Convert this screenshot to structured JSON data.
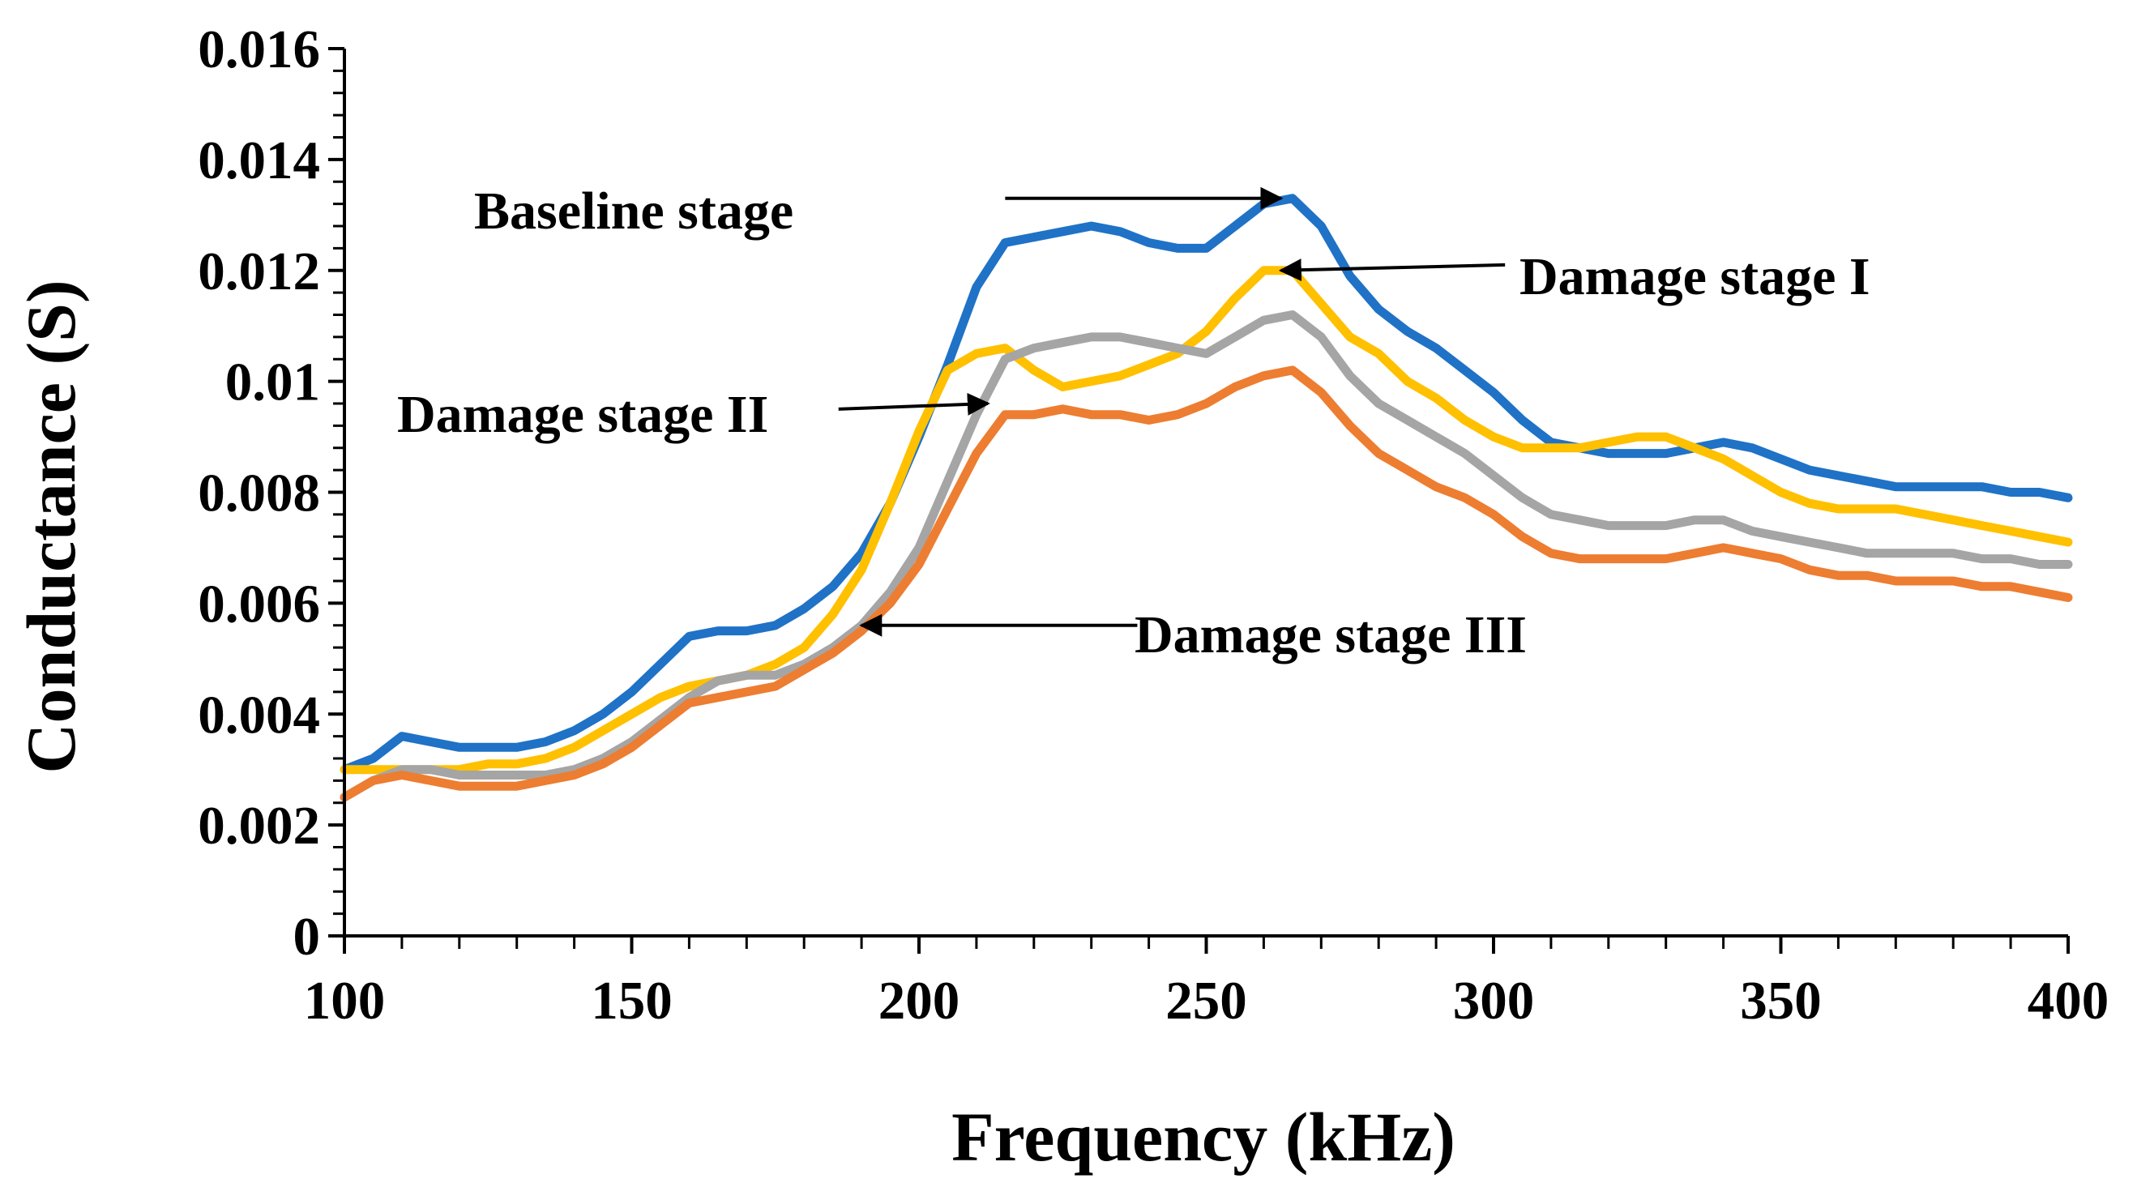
{
  "chart_data": {
    "type": "line",
    "title": "",
    "xlabel": "Frequency (kHz)",
    "ylabel": "Conductance (S)",
    "xlim": [
      100,
      400
    ],
    "ylim": [
      0,
      0.016
    ],
    "x_ticks": [
      "100",
      "150",
      "200",
      "250",
      "300",
      "350",
      "400"
    ],
    "y_ticks": [
      "0",
      "0.002",
      "0.004",
      "0.006",
      "0.008",
      "0.01",
      "0.012",
      "0.014",
      "0.016"
    ],
    "legend": "none",
    "grid": false,
    "x": [
      100,
      105,
      110,
      115,
      120,
      125,
      130,
      135,
      140,
      145,
      150,
      155,
      160,
      165,
      170,
      175,
      180,
      185,
      190,
      195,
      200,
      205,
      210,
      215,
      220,
      225,
      230,
      235,
      240,
      245,
      250,
      255,
      260,
      265,
      270,
      275,
      280,
      285,
      290,
      295,
      300,
      305,
      310,
      315,
      320,
      325,
      330,
      335,
      340,
      345,
      350,
      355,
      360,
      365,
      370,
      375,
      380,
      385,
      390,
      395,
      400
    ],
    "series": [
      {
        "name": "Baseline stage",
        "color": "#1f72c6",
        "values": [
          0.003,
          0.0032,
          0.0036,
          0.0035,
          0.0034,
          0.0034,
          0.0034,
          0.0035,
          0.0037,
          0.004,
          0.0044,
          0.0049,
          0.0054,
          0.0055,
          0.0055,
          0.0056,
          0.0059,
          0.0063,
          0.0069,
          0.0078,
          0.009,
          0.0103,
          0.0117,
          0.0125,
          0.0126,
          0.0127,
          0.0128,
          0.0127,
          0.0125,
          0.0124,
          0.0124,
          0.0128,
          0.0132,
          0.0133,
          0.0128,
          0.0119,
          0.0113,
          0.0109,
          0.0106,
          0.0102,
          0.0098,
          0.0093,
          0.0089,
          0.0088,
          0.0087,
          0.0087,
          0.0087,
          0.0088,
          0.0089,
          0.0088,
          0.0086,
          0.0084,
          0.0083,
          0.0082,
          0.0081,
          0.0081,
          0.0081,
          0.0081,
          0.008,
          0.008,
          0.0079
        ]
      },
      {
        "name": "Damage stage I",
        "color": "#ffc000",
        "values": [
          0.003,
          0.003,
          0.003,
          0.003,
          0.003,
          0.0031,
          0.0031,
          0.0032,
          0.0034,
          0.0037,
          0.004,
          0.0043,
          0.0045,
          0.0046,
          0.0047,
          0.0049,
          0.0052,
          0.0058,
          0.0066,
          0.0078,
          0.0091,
          0.0102,
          0.0105,
          0.0106,
          0.0102,
          0.0099,
          0.01,
          0.0101,
          0.0103,
          0.0105,
          0.0109,
          0.0115,
          0.012,
          0.012,
          0.0114,
          0.0108,
          0.0105,
          0.01,
          0.0097,
          0.0093,
          0.009,
          0.0088,
          0.0088,
          0.0088,
          0.0089,
          0.009,
          0.009,
          0.0088,
          0.0086,
          0.0083,
          0.008,
          0.0078,
          0.0077,
          0.0077,
          0.0077,
          0.0076,
          0.0075,
          0.0074,
          0.0073,
          0.0072,
          0.0071
        ]
      },
      {
        "name": "Damage stage II",
        "color": "#a5a5a5",
        "values": [
          0.0025,
          0.0028,
          0.003,
          0.003,
          0.0029,
          0.0029,
          0.0029,
          0.0029,
          0.003,
          0.0032,
          0.0035,
          0.0039,
          0.0043,
          0.0046,
          0.0047,
          0.0047,
          0.0049,
          0.0052,
          0.0056,
          0.0062,
          0.007,
          0.0082,
          0.0094,
          0.0104,
          0.0106,
          0.0107,
          0.0108,
          0.0108,
          0.0107,
          0.0106,
          0.0105,
          0.0108,
          0.0111,
          0.0112,
          0.0108,
          0.0101,
          0.0096,
          0.0093,
          0.009,
          0.0087,
          0.0083,
          0.0079,
          0.0076,
          0.0075,
          0.0074,
          0.0074,
          0.0074,
          0.0075,
          0.0075,
          0.0073,
          0.0072,
          0.0071,
          0.007,
          0.0069,
          0.0069,
          0.0069,
          0.0069,
          0.0068,
          0.0068,
          0.0067,
          0.0067
        ]
      },
      {
        "name": "Damage stage III",
        "color": "#ed7d31",
        "values": [
          0.0025,
          0.0028,
          0.0029,
          0.0028,
          0.0027,
          0.0027,
          0.0027,
          0.0028,
          0.0029,
          0.0031,
          0.0034,
          0.0038,
          0.0042,
          0.0043,
          0.0044,
          0.0045,
          0.0048,
          0.0051,
          0.0055,
          0.006,
          0.0067,
          0.0077,
          0.0087,
          0.0094,
          0.0094,
          0.0095,
          0.0094,
          0.0094,
          0.0093,
          0.0094,
          0.0096,
          0.0099,
          0.0101,
          0.0102,
          0.0098,
          0.0092,
          0.0087,
          0.0084,
          0.0081,
          0.0079,
          0.0076,
          0.0072,
          0.0069,
          0.0068,
          0.0068,
          0.0068,
          0.0068,
          0.0069,
          0.007,
          0.0069,
          0.0068,
          0.0066,
          0.0065,
          0.0065,
          0.0064,
          0.0064,
          0.0064,
          0.0063,
          0.0063,
          0.0062,
          0.0061
        ]
      }
    ],
    "annotations": [
      {
        "text": "Baseline stage",
        "series": "Baseline stage",
        "arrow_to_x": 263,
        "arrow_to_y": 0.0133,
        "arrow_from_x": 215,
        "arrow_from_y": 0.0133
      },
      {
        "text": "Damage stage I",
        "series": "Damage stage I",
        "arrow_to_x": 263,
        "arrow_to_y": 0.012,
        "arrow_from_x": 302,
        "arrow_from_y": 0.0121
      },
      {
        "text": "Damage stage II",
        "series": "Damage stage II",
        "arrow_to_x": 212,
        "arrow_to_y": 0.0096,
        "arrow_from_x": 186,
        "arrow_from_y": 0.0095
      },
      {
        "text": "Damage stage III",
        "series": "Damage stage III",
        "arrow_to_x": 190,
        "arrow_to_y": 0.0056,
        "arrow_from_x": 238,
        "arrow_from_y": 0.0056
      }
    ]
  }
}
